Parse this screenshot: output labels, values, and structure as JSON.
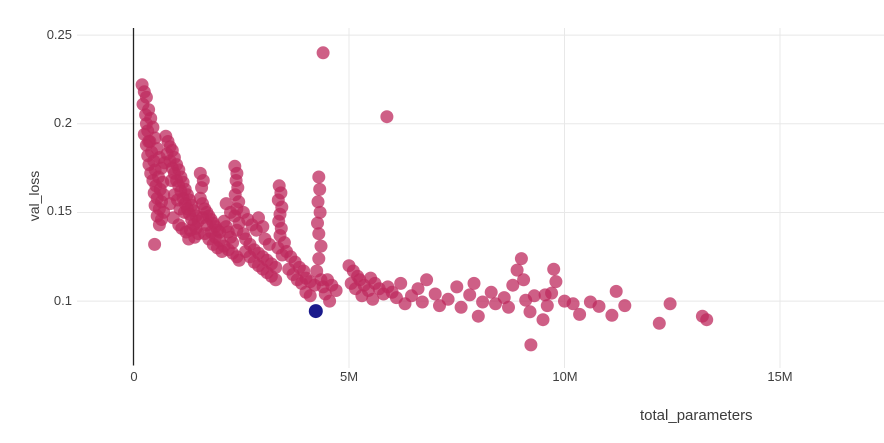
{
  "chart_data": {
    "type": "scatter",
    "title": "",
    "xlabel": "total_parameters",
    "ylabel": "val_loss",
    "x_unit": "M",
    "xlim": [
      0,
      17.32
    ],
    "ylim": [
      0.0637,
      0.254
    ],
    "grid": true,
    "legend": "none",
    "x_tick_labels": [
      "0",
      "5M",
      "10M",
      "15M"
    ],
    "x_tick_values": [
      0,
      5,
      10,
      15
    ],
    "y_tick_labels": [
      "0.25",
      "0.2",
      "0.15",
      "0.1"
    ],
    "y_tick_values": [
      0.25,
      0.2,
      0.15,
      0.1
    ],
    "colors": {
      "run_point": "#bd2a5e",
      "run_point_opacity": 0.75,
      "selected_point": "#1a1a8c",
      "gridline": "#e8e8e8",
      "axis_line": "#222222",
      "tick_text": "#3f3f3f"
    },
    "series": [
      {
        "name": "runs",
        "color": "#bd2a5e",
        "opacity": 0.75,
        "radius": 6.5,
        "points": [
          [
            0.2,
            0.222
          ],
          [
            0.25,
            0.218
          ],
          [
            0.3,
            0.215
          ],
          [
            0.22,
            0.211
          ],
          [
            0.35,
            0.208
          ],
          [
            0.28,
            0.205
          ],
          [
            0.4,
            0.203
          ],
          [
            0.3,
            0.2
          ],
          [
            0.45,
            0.198
          ],
          [
            0.33,
            0.196
          ],
          [
            0.25,
            0.194
          ],
          [
            0.5,
            0.192
          ],
          [
            0.38,
            0.19
          ],
          [
            0.3,
            0.188
          ],
          [
            0.55,
            0.186
          ],
          [
            0.42,
            0.184
          ],
          [
            0.33,
            0.182
          ],
          [
            0.6,
            0.181
          ],
          [
            0.47,
            0.179
          ],
          [
            0.36,
            0.177
          ],
          [
            0.65,
            0.175
          ],
          [
            0.5,
            0.174
          ],
          [
            0.4,
            0.172
          ],
          [
            0.58,
            0.17
          ],
          [
            0.45,
            0.168
          ],
          [
            0.68,
            0.167
          ],
          [
            0.52,
            0.165
          ],
          [
            0.62,
            0.163
          ],
          [
            0.48,
            0.161
          ],
          [
            0.7,
            0.16
          ],
          [
            0.55,
            0.158
          ],
          [
            0.65,
            0.156
          ],
          [
            0.5,
            0.154
          ],
          [
            0.6,
            0.152
          ],
          [
            0.7,
            0.15
          ],
          [
            0.55,
            0.148
          ],
          [
            0.65,
            0.146
          ],
          [
            0.6,
            0.143
          ],
          [
            0.49,
            0.132
          ],
          [
            0.35,
            0.19
          ],
          [
            0.75,
            0.193
          ],
          [
            0.8,
            0.19
          ],
          [
            0.85,
            0.187
          ],
          [
            0.9,
            0.185
          ],
          [
            0.78,
            0.183
          ],
          [
            0.95,
            0.181
          ],
          [
            0.85,
            0.179
          ],
          [
            1.0,
            0.177
          ],
          [
            0.9,
            0.175
          ],
          [
            1.05,
            0.174
          ],
          [
            0.95,
            0.172
          ],
          [
            1.1,
            0.17
          ],
          [
            1.0,
            0.168
          ],
          [
            1.15,
            0.167
          ],
          [
            1.05,
            0.165
          ],
          [
            1.2,
            0.163
          ],
          [
            1.1,
            0.162
          ],
          [
            1.25,
            0.16
          ],
          [
            1.15,
            0.158
          ],
          [
            1.3,
            0.157
          ],
          [
            1.2,
            0.155
          ],
          [
            1.35,
            0.154
          ],
          [
            1.25,
            0.152
          ],
          [
            1.4,
            0.151
          ],
          [
            1.3,
            0.149
          ],
          [
            1.45,
            0.148
          ],
          [
            1.35,
            0.146
          ],
          [
            1.5,
            0.145
          ],
          [
            1.4,
            0.143
          ],
          [
            1.45,
            0.141
          ],
          [
            1.32,
            0.14
          ],
          [
            1.22,
            0.139
          ],
          [
            1.12,
            0.141
          ],
          [
            1.05,
            0.143
          ],
          [
            0.92,
            0.147
          ],
          [
            1.5,
            0.138
          ],
          [
            1.42,
            0.136
          ],
          [
            1.28,
            0.135
          ],
          [
            0.85,
            0.155
          ],
          [
            0.95,
            0.16
          ],
          [
            1.02,
            0.157
          ],
          [
            1.18,
            0.15
          ],
          [
            0.88,
            0.168
          ],
          [
            0.72,
            0.178
          ],
          [
            1.08,
            0.152
          ],
          [
            1.55,
            0.158
          ],
          [
            1.6,
            0.155
          ],
          [
            1.65,
            0.152
          ],
          [
            1.7,
            0.15
          ],
          [
            1.75,
            0.148
          ],
          [
            1.8,
            0.146
          ],
          [
            1.85,
            0.144
          ],
          [
            1.9,
            0.142
          ],
          [
            1.95,
            0.14
          ],
          [
            2.0,
            0.139
          ],
          [
            1.6,
            0.147
          ],
          [
            1.7,
            0.143
          ],
          [
            1.8,
            0.139
          ],
          [
            1.9,
            0.136
          ],
          [
            2.0,
            0.134
          ],
          [
            1.65,
            0.138
          ],
          [
            1.75,
            0.135
          ],
          [
            1.85,
            0.132
          ],
          [
            1.95,
            0.13
          ],
          [
            2.05,
            0.128
          ],
          [
            2.1,
            0.145
          ],
          [
            2.15,
            0.142
          ],
          [
            2.2,
            0.139
          ],
          [
            2.25,
            0.136
          ],
          [
            2.3,
            0.133
          ],
          [
            2.1,
            0.131
          ],
          [
            2.2,
            0.129
          ],
          [
            2.3,
            0.127
          ],
          [
            2.4,
            0.125
          ],
          [
            2.45,
            0.123
          ],
          [
            2.35,
            0.176
          ],
          [
            2.4,
            0.172
          ],
          [
            2.38,
            0.168
          ],
          [
            2.42,
            0.164
          ],
          [
            2.36,
            0.16
          ],
          [
            2.44,
            0.156
          ],
          [
            2.4,
            0.152
          ],
          [
            2.35,
            0.148
          ],
          [
            2.45,
            0.144
          ],
          [
            2.4,
            0.14
          ],
          [
            1.55,
            0.172
          ],
          [
            1.62,
            0.168
          ],
          [
            1.58,
            0.164
          ],
          [
            2.15,
            0.155
          ],
          [
            2.25,
            0.15
          ],
          [
            2.55,
            0.138
          ],
          [
            2.6,
            0.135
          ],
          [
            2.7,
            0.132
          ],
          [
            2.8,
            0.129
          ],
          [
            2.9,
            0.127
          ],
          [
            3.0,
            0.125
          ],
          [
            2.6,
            0.128
          ],
          [
            2.7,
            0.125
          ],
          [
            2.8,
            0.122
          ],
          [
            2.9,
            0.12
          ],
          [
            3.0,
            0.118
          ],
          [
            3.1,
            0.123
          ],
          [
            3.2,
            0.121
          ],
          [
            3.3,
            0.119
          ],
          [
            3.1,
            0.116
          ],
          [
            3.2,
            0.114
          ],
          [
            2.55,
            0.15
          ],
          [
            2.65,
            0.146
          ],
          [
            2.75,
            0.143
          ],
          [
            2.85,
            0.14
          ],
          [
            3.05,
            0.135
          ],
          [
            3.15,
            0.132
          ],
          [
            3.38,
            0.165
          ],
          [
            3.42,
            0.161
          ],
          [
            3.36,
            0.157
          ],
          [
            3.44,
            0.153
          ],
          [
            3.4,
            0.149
          ],
          [
            3.37,
            0.145
          ],
          [
            3.43,
            0.141
          ],
          [
            3.4,
            0.137
          ],
          [
            3.35,
            0.13
          ],
          [
            3.45,
            0.126
          ],
          [
            3.3,
            0.112
          ],
          [
            3.0,
            0.142
          ],
          [
            2.9,
            0.147
          ],
          [
            3.55,
            0.128
          ],
          [
            3.65,
            0.125
          ],
          [
            3.75,
            0.122
          ],
          [
            3.85,
            0.119
          ],
          [
            3.95,
            0.117
          ],
          [
            3.6,
            0.118
          ],
          [
            3.7,
            0.115
          ],
          [
            3.8,
            0.112
          ],
          [
            3.9,
            0.11
          ],
          [
            4.0,
            0.113
          ],
          [
            4.1,
            0.111
          ],
          [
            4.2,
            0.109
          ],
          [
            4.0,
            0.105
          ],
          [
            4.1,
            0.103
          ],
          [
            4.3,
            0.17
          ],
          [
            4.32,
            0.163
          ],
          [
            4.28,
            0.156
          ],
          [
            4.33,
            0.15
          ],
          [
            4.27,
            0.144
          ],
          [
            4.3,
            0.138
          ],
          [
            4.35,
            0.131
          ],
          [
            4.3,
            0.124
          ],
          [
            4.25,
            0.117
          ],
          [
            4.35,
            0.112
          ],
          [
            4.4,
            0.108
          ],
          [
            4.5,
            0.112
          ],
          [
            4.6,
            0.109
          ],
          [
            4.7,
            0.106
          ],
          [
            4.45,
            0.104
          ],
          [
            4.55,
            0.1
          ],
          [
            3.5,
            0.133
          ],
          [
            5.0,
            0.12
          ],
          [
            5.1,
            0.117
          ],
          [
            5.2,
            0.114
          ],
          [
            5.05,
            0.11
          ],
          [
            5.15,
            0.107
          ],
          [
            5.25,
            0.112
          ],
          [
            5.35,
            0.109
          ],
          [
            5.45,
            0.106
          ],
          [
            5.3,
            0.103
          ],
          [
            5.5,
            0.113
          ],
          [
            5.6,
            0.11
          ],
          [
            5.7,
            0.107
          ],
          [
            5.55,
            0.101
          ],
          [
            5.8,
            0.104
          ],
          [
            5.9,
            0.108
          ],
          [
            6.0,
            0.105
          ],
          [
            6.1,
            0.102
          ],
          [
            6.2,
            0.11
          ],
          [
            6.3,
            0.0985
          ],
          [
            6.45,
            0.103
          ],
          [
            6.6,
            0.107
          ],
          [
            6.7,
            0.0995
          ],
          [
            6.8,
            0.112
          ],
          [
            7.0,
            0.104
          ],
          [
            7.1,
            0.0975
          ],
          [
            7.3,
            0.101
          ],
          [
            7.5,
            0.108
          ],
          [
            7.6,
            0.0965
          ],
          [
            7.8,
            0.1035
          ],
          [
            7.9,
            0.11
          ],
          [
            8.0,
            0.0915
          ],
          [
            8.1,
            0.0995
          ],
          [
            8.3,
            0.105
          ],
          [
            8.4,
            0.0985
          ],
          [
            8.6,
            0.102
          ],
          [
            8.7,
            0.0965
          ],
          [
            8.8,
            0.109
          ],
          [
            8.9,
            0.1175
          ],
          [
            9.0,
            0.124
          ],
          [
            9.05,
            0.112
          ],
          [
            9.1,
            0.1005
          ],
          [
            9.2,
            0.094
          ],
          [
            9.3,
            0.103
          ],
          [
            9.5,
            0.0895
          ],
          [
            9.55,
            0.1035
          ],
          [
            9.6,
            0.0975
          ],
          [
            9.7,
            0.1045
          ],
          [
            9.75,
            0.118
          ],
          [
            9.8,
            0.111
          ],
          [
            10.0,
            0.1
          ],
          [
            10.2,
            0.0985
          ],
          [
            10.35,
            0.0925
          ],
          [
            10.6,
            0.0995
          ],
          [
            10.8,
            0.097
          ],
          [
            11.1,
            0.092
          ],
          [
            11.2,
            0.1055
          ],
          [
            11.4,
            0.0975
          ],
          [
            12.2,
            0.0875
          ],
          [
            12.45,
            0.0985
          ],
          [
            13.2,
            0.0915
          ],
          [
            13.3,
            0.0895
          ],
          [
            4.4,
            0.24
          ],
          [
            5.88,
            0.204
          ],
          [
            9.22,
            0.0753
          ]
        ]
      },
      {
        "name": "selected-run",
        "color": "#1a1a8c",
        "opacity": 1.0,
        "radius": 7,
        "points": [
          [
            4.23,
            0.0944
          ]
        ]
      }
    ]
  }
}
